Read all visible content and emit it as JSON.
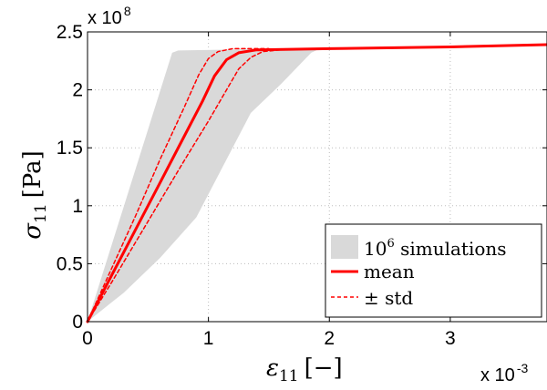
{
  "chart_data": {
    "type": "line",
    "x_axis": {
      "range": [
        0,
        3.8
      ],
      "ticks": [
        0,
        1,
        2,
        3
      ],
      "tick_labels": [
        "0",
        "1",
        "2",
        "3"
      ],
      "multiplier": "x 10",
      "multiplier_exp": "-3",
      "label_symbol": "ε",
      "label_subscript": "11",
      "label_unit": "[−]"
    },
    "y_axis": {
      "range": [
        0,
        2.5
      ],
      "ticks": [
        0,
        0.5,
        1,
        1.5,
        2,
        2.5
      ],
      "tick_labels": [
        "0",
        "0.5",
        "1",
        "1.5",
        "2",
        "2.5"
      ],
      "multiplier": "x 10",
      "multiplier_exp": "8",
      "label_symbol": "σ",
      "label_subscript": "11",
      "label_unit": "[Pa]"
    },
    "grid": true,
    "legend": {
      "placement": "bottom-right",
      "entries": [
        {
          "base": "10",
          "sup": "6",
          "rest": " simulations"
        },
        {
          "text": "mean"
        },
        {
          "text": "± std"
        }
      ]
    },
    "band": {
      "color": "#d9d9d9",
      "upper": [
        [
          0,
          0
        ],
        [
          0.7,
          2.32
        ],
        [
          0.75,
          2.34
        ],
        [
          3.8,
          2.39
        ]
      ],
      "lower": [
        [
          0,
          0
        ],
        [
          0.3,
          0.25
        ],
        [
          0.6,
          0.55
        ],
        [
          0.9,
          0.9
        ],
        [
          1.1,
          1.3
        ],
        [
          1.35,
          1.8
        ],
        [
          1.6,
          2.05
        ],
        [
          1.85,
          2.32
        ],
        [
          1.9,
          2.345
        ]
      ]
    },
    "series": [
      {
        "role": "mean",
        "color": "#ff0000",
        "style": "solid",
        "points": [
          [
            0,
            0
          ],
          [
            0.2,
            0.4
          ],
          [
            0.4,
            0.8
          ],
          [
            0.6,
            1.2
          ],
          [
            0.8,
            1.6
          ],
          [
            0.95,
            1.9
          ],
          [
            1.05,
            2.12
          ],
          [
            1.15,
            2.26
          ],
          [
            1.25,
            2.32
          ],
          [
            1.4,
            2.345
          ],
          [
            2.0,
            2.355
          ],
          [
            3.0,
            2.37
          ],
          [
            3.8,
            2.39
          ]
        ]
      },
      {
        "role": "plus-std",
        "color": "#ff0000",
        "style": "dashed",
        "points": [
          [
            0,
            0
          ],
          [
            0.2,
            0.46
          ],
          [
            0.4,
            0.92
          ],
          [
            0.6,
            1.4
          ],
          [
            0.8,
            1.85
          ],
          [
            0.92,
            2.13
          ],
          [
            1.0,
            2.27
          ],
          [
            1.08,
            2.33
          ],
          [
            1.2,
            2.355
          ],
          [
            1.5,
            2.355
          ]
        ]
      },
      {
        "role": "minus-std",
        "color": "#ff0000",
        "style": "dashed",
        "points": [
          [
            0,
            0
          ],
          [
            0.2,
            0.34
          ],
          [
            0.4,
            0.69
          ],
          [
            0.6,
            1.04
          ],
          [
            0.8,
            1.39
          ],
          [
            1.0,
            1.73
          ],
          [
            1.15,
            2.0
          ],
          [
            1.25,
            2.18
          ],
          [
            1.35,
            2.28
          ],
          [
            1.45,
            2.33
          ],
          [
            1.6,
            2.345
          ]
        ]
      }
    ]
  }
}
